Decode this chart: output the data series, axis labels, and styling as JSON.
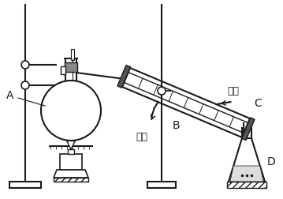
{
  "bg_color": "#ffffff",
  "line_color": "#1a1a1a",
  "label_A": "A",
  "label_B": "B",
  "label_C": "C",
  "label_D": "D",
  "label_inlet": "进水",
  "label_outlet": "出水",
  "figsize": [
    3.59,
    2.52
  ],
  "dpi": 100
}
